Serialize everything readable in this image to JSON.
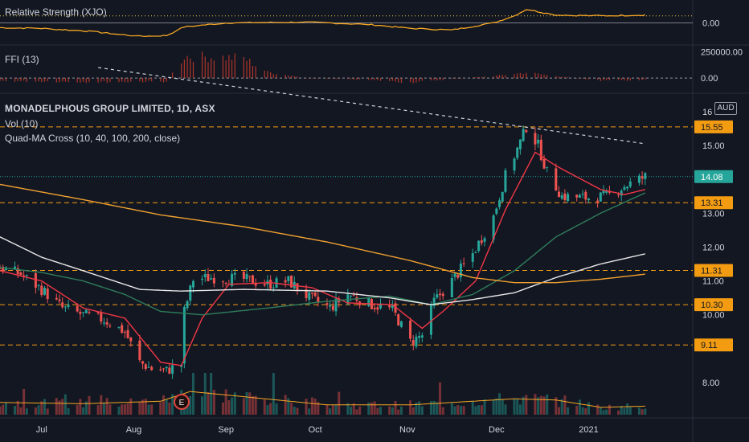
{
  "panes": {
    "rs_label": "Relative Strength (XJO)",
    "ffi_label": "FFI (13)",
    "title": "MONADELPHOUS GROUP LIMITED, 1D, ASX",
    "vol_label": "Vol (10)",
    "ma_label": "Quad-MA Cross (10, 40, 100, 200, close)",
    "currency": "AUD",
    "earnings_marker": "E"
  },
  "colors": {
    "background": "#131722",
    "up": "#26a69a",
    "down": "#ef5350",
    "level": "#f39c12",
    "ma10": "#f23645",
    "ma40": "#2e7d5b",
    "ma100": "#e8e8e8",
    "ma200": "#f0a030",
    "rs_line": "#f5a623",
    "vol_avg": "#f5a623",
    "last_price": "#26a69a"
  },
  "chart_data": [
    {
      "id": "price",
      "type": "candlestick",
      "title": "MONADELPHOUS GROUP LIMITED, 1D, ASX",
      "x_ticks": [
        "Jul",
        "Aug",
        "Sep",
        "Oct",
        "Nov",
        "Dec",
        "2021"
      ],
      "y_ticks": [
        8.0,
        10.0,
        11.0,
        12.0,
        13.0,
        15.0,
        16.0
      ],
      "y_tick_labels": [
        "8.00",
        "10.00",
        "11.00",
        "12.00",
        "13.00",
        "15.00",
        "16"
      ],
      "ylim": [
        7.1,
        16.3
      ],
      "horizontal_levels": [
        15.55,
        13.31,
        11.31,
        10.3,
        9.11
      ],
      "level_labels": [
        "15.55",
        "13.31",
        "11.31",
        "10.30",
        "9.11"
      ],
      "last_price": 14.08,
      "last_price_label": "14.08",
      "trendline": [
        {
          "x": "2020-07-20",
          "y": 17.3
        },
        {
          "x": "2021-01-20",
          "y": 15.05
        }
      ],
      "x_range": [
        "2020-06-17",
        "2021-02-05"
      ],
      "candle_interval_days": 1,
      "ohlc_anchors": [
        {
          "x": "2020-06-17",
          "close": 11.4
        },
        {
          "x": "2020-06-24",
          "close": 11.2
        },
        {
          "x": "2020-07-01",
          "close": 10.75
        },
        {
          "x": "2020-07-08",
          "close": 10.2
        },
        {
          "x": "2020-07-15",
          "close": 10.0
        },
        {
          "x": "2020-07-22",
          "close": 9.85
        },
        {
          "x": "2020-07-29",
          "close": 9.5
        },
        {
          "x": "2020-08-03",
          "close": 8.6
        },
        {
          "x": "2020-08-07",
          "close": 8.4
        },
        {
          "x": "2020-08-12",
          "close": 8.35
        },
        {
          "x": "2020-08-17",
          "close": 8.55
        },
        {
          "x": "2020-08-18",
          "close": 10.1
        },
        {
          "x": "2020-08-21",
          "close": 11.05
        },
        {
          "x": "2020-08-28",
          "close": 11.1
        },
        {
          "x": "2020-09-07",
          "close": 11.05
        },
        {
          "x": "2020-09-15",
          "close": 10.9
        },
        {
          "x": "2020-09-22",
          "close": 11.0
        },
        {
          "x": "2020-09-29",
          "close": 10.5
        },
        {
          "x": "2020-10-06",
          "close": 10.2
        },
        {
          "x": "2020-10-12",
          "close": 10.6
        },
        {
          "x": "2020-10-20",
          "close": 10.3
        },
        {
          "x": "2020-10-27",
          "close": 10.15
        },
        {
          "x": "2020-11-02",
          "close": 9.2
        },
        {
          "x": "2020-11-06",
          "close": 9.4
        },
        {
          "x": "2020-11-10",
          "close": 10.4
        },
        {
          "x": "2020-11-16",
          "close": 11.0
        },
        {
          "x": "2020-11-23",
          "close": 11.8
        },
        {
          "x": "2020-11-30",
          "close": 12.9
        },
        {
          "x": "2020-12-04",
          "close": 14.1
        },
        {
          "x": "2020-12-09",
          "close": 15.1
        },
        {
          "x": "2020-12-11",
          "close": 15.55
        },
        {
          "x": "2020-12-15",
          "close": 15.0
        },
        {
          "x": "2020-12-18",
          "close": 14.2
        },
        {
          "x": "2020-12-23",
          "close": 13.5
        },
        {
          "x": "2020-12-31",
          "close": 13.45
        },
        {
          "x": "2021-01-07",
          "close": 13.5
        },
        {
          "x": "2021-01-13",
          "close": 13.8
        },
        {
          "x": "2021-01-20",
          "close": 14.08
        }
      ],
      "series": [
        {
          "name": "10",
          "anchors": [
            {
              "x": "2020-06-17",
              "y": 11.3
            },
            {
              "x": "2020-07-01",
              "y": 11.0
            },
            {
              "x": "2020-07-15",
              "y": 10.2
            },
            {
              "x": "2020-07-29",
              "y": 9.9
            },
            {
              "x": "2020-08-10",
              "y": 8.6
            },
            {
              "x": "2020-08-17",
              "y": 8.5
            },
            {
              "x": "2020-08-24",
              "y": 9.9
            },
            {
              "x": "2020-09-02",
              "y": 10.9
            },
            {
              "x": "2020-09-16",
              "y": 10.95
            },
            {
              "x": "2020-09-30",
              "y": 10.8
            },
            {
              "x": "2020-10-12",
              "y": 10.35
            },
            {
              "x": "2020-10-27",
              "y": 10.3
            },
            {
              "x": "2020-11-06",
              "y": 9.6
            },
            {
              "x": "2020-11-13",
              "y": 10.1
            },
            {
              "x": "2020-11-24",
              "y": 11.0
            },
            {
              "x": "2020-12-04",
              "y": 13.1
            },
            {
              "x": "2020-12-14",
              "y": 14.8
            },
            {
              "x": "2020-12-21",
              "y": 14.4
            },
            {
              "x": "2021-01-05",
              "y": 13.7
            },
            {
              "x": "2021-01-13",
              "y": 13.55
            },
            {
              "x": "2021-01-20",
              "y": 13.7
            }
          ]
        },
        {
          "name": "40",
          "anchors": [
            {
              "x": "2020-06-17",
              "y": 11.4
            },
            {
              "x": "2020-07-01",
              "y": 11.25
            },
            {
              "x": "2020-07-15",
              "y": 11.0
            },
            {
              "x": "2020-07-29",
              "y": 10.6
            },
            {
              "x": "2020-08-10",
              "y": 10.1
            },
            {
              "x": "2020-08-24",
              "y": 10.0
            },
            {
              "x": "2020-09-15",
              "y": 10.2
            },
            {
              "x": "2020-10-05",
              "y": 10.4
            },
            {
              "x": "2020-10-26",
              "y": 10.55
            },
            {
              "x": "2020-11-09",
              "y": 10.3
            },
            {
              "x": "2020-11-23",
              "y": 10.6
            },
            {
              "x": "2020-12-07",
              "y": 11.3
            },
            {
              "x": "2020-12-21",
              "y": 12.3
            },
            {
              "x": "2021-01-05",
              "y": 13.0
            },
            {
              "x": "2021-01-20",
              "y": 13.6
            }
          ]
        },
        {
          "name": "100",
          "anchors": [
            {
              "x": "2020-06-17",
              "y": 12.3
            },
            {
              "x": "2020-07-01",
              "y": 11.7
            },
            {
              "x": "2020-07-15",
              "y": 11.3
            },
            {
              "x": "2020-08-03",
              "y": 10.75
            },
            {
              "x": "2020-08-17",
              "y": 10.7
            },
            {
              "x": "2020-09-07",
              "y": 10.75
            },
            {
              "x": "2020-10-05",
              "y": 10.7
            },
            {
              "x": "2020-10-26",
              "y": 10.5
            },
            {
              "x": "2020-11-09",
              "y": 10.3
            },
            {
              "x": "2020-11-23",
              "y": 10.45
            },
            {
              "x": "2020-12-07",
              "y": 10.65
            },
            {
              "x": "2020-12-21",
              "y": 11.1
            },
            {
              "x": "2021-01-05",
              "y": 11.5
            },
            {
              "x": "2021-01-20",
              "y": 11.8
            }
          ]
        },
        {
          "name": "200",
          "anchors": [
            {
              "x": "2020-06-17",
              "y": 13.85
            },
            {
              "x": "2020-07-15",
              "y": 13.4
            },
            {
              "x": "2020-08-10",
              "y": 12.95
            },
            {
              "x": "2020-09-07",
              "y": 12.6
            },
            {
              "x": "2020-10-05",
              "y": 12.15
            },
            {
              "x": "2020-11-02",
              "y": 11.6
            },
            {
              "x": "2020-11-23",
              "y": 11.1
            },
            {
              "x": "2020-12-07",
              "y": 10.95
            },
            {
              "x": "2020-12-21",
              "y": 10.95
            },
            {
              "x": "2021-01-05",
              "y": 11.05
            },
            {
              "x": "2021-01-20",
              "y": 11.2
            }
          ]
        }
      ]
    },
    {
      "id": "volume",
      "type": "bar",
      "series_name": "Vol (10)",
      "note_scale": "relative, no axis labels shown",
      "avg_anchors": [
        {
          "x": "2020-06-17",
          "y": 1.0
        },
        {
          "x": "2020-07-15",
          "y": 0.9
        },
        {
          "x": "2020-08-10",
          "y": 1.1
        },
        {
          "x": "2020-08-20",
          "y": 1.9
        },
        {
          "x": "2020-09-10",
          "y": 1.4
        },
        {
          "x": "2020-10-05",
          "y": 0.8
        },
        {
          "x": "2020-11-02",
          "y": 0.8
        },
        {
          "x": "2020-12-07",
          "y": 1.3
        },
        {
          "x": "2020-12-21",
          "y": 1.2
        },
        {
          "x": "2021-01-05",
          "y": 0.6
        },
        {
          "x": "2021-01-20",
          "y": 0.7
        }
      ]
    },
    {
      "id": "relative-strength",
      "type": "line",
      "series_name": "Relative Strength (XJO)",
      "y_ticks": [
        0.0
      ],
      "y_tick_labels": [
        "0.00"
      ],
      "ylim": [
        -1.3,
        1.3
      ],
      "anchors": [
        {
          "x": "2020-06-17",
          "y": -0.3
        },
        {
          "x": "2020-07-01",
          "y": -0.35
        },
        {
          "x": "2020-07-15",
          "y": -0.5
        },
        {
          "x": "2020-08-03",
          "y": -0.85
        },
        {
          "x": "2020-08-12",
          "y": -0.8
        },
        {
          "x": "2020-08-18",
          "y": -0.25
        },
        {
          "x": "2020-09-01",
          "y": 0.0
        },
        {
          "x": "2020-09-28",
          "y": 0.05
        },
        {
          "x": "2020-10-19",
          "y": -0.1
        },
        {
          "x": "2020-11-02",
          "y": -0.35
        },
        {
          "x": "2020-11-16",
          "y": -0.45
        },
        {
          "x": "2020-11-30",
          "y": 0.0
        },
        {
          "x": "2020-12-07",
          "y": 0.45
        },
        {
          "x": "2020-12-11",
          "y": 0.85
        },
        {
          "x": "2020-12-21",
          "y": 0.5
        },
        {
          "x": "2021-01-05",
          "y": 0.45
        },
        {
          "x": "2021-01-20",
          "y": 0.5
        }
      ],
      "dotted_level": 0.5
    },
    {
      "id": "ffi",
      "type": "bar",
      "series_name": "FFI (13)",
      "y_ticks": [
        250000.0,
        0.0
      ],
      "y_tick_labels": [
        "250000.00",
        "0.00"
      ],
      "ylim": [
        -130000,
        300000
      ],
      "anchors": [
        {
          "x": "2020-06-17",
          "y": -30000
        },
        {
          "x": "2020-07-20",
          "y": -40000
        },
        {
          "x": "2020-08-12",
          "y": -35000
        },
        {
          "x": "2020-08-18",
          "y": 220000
        },
        {
          "x": "2020-09-07",
          "y": 200000
        },
        {
          "x": "2020-09-15",
          "y": 60000
        },
        {
          "x": "2020-09-28",
          "y": 0
        },
        {
          "x": "2020-10-20",
          "y": -20000
        },
        {
          "x": "2020-11-02",
          "y": -45000
        },
        {
          "x": "2020-11-16",
          "y": -10000
        },
        {
          "x": "2020-11-30",
          "y": 20000
        },
        {
          "x": "2020-12-11",
          "y": 55000
        },
        {
          "x": "2020-12-21",
          "y": 20000
        },
        {
          "x": "2021-01-05",
          "y": -25000
        },
        {
          "x": "2021-01-20",
          "y": -20000
        }
      ]
    }
  ]
}
